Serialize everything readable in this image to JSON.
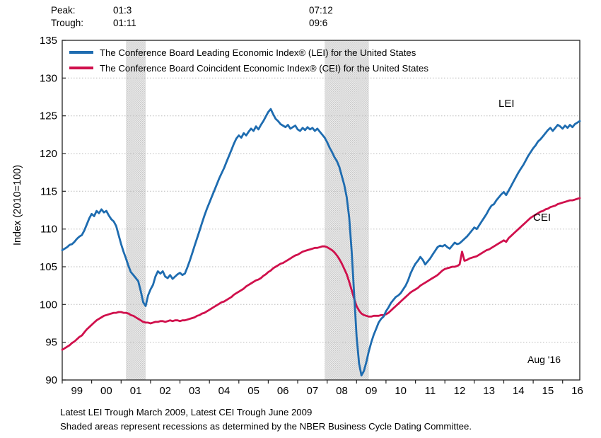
{
  "annotations": {
    "peak_label": "Peak:",
    "trough_label": "Trough:",
    "recession1_peak": "01:3",
    "recession1_trough": "01:11",
    "recession2_peak": "07:12",
    "recession2_trough": "09:6"
  },
  "labels": {
    "lei_curve": "LEI",
    "cei_curve": "CEI",
    "last_point": "Aug '16"
  },
  "footer": {
    "line1": "Latest LEI Trough March 2009, Latest CEI Trough June 2009",
    "line2": "Shaded areas represent recessions as determined by the NBER Business Cycle Dating Committee."
  },
  "chart_data": {
    "type": "line",
    "title": "",
    "xlabel": "",
    "ylabel": "Index (2010=100)",
    "ylim": [
      90,
      135
    ],
    "grid": "horizontal-dotted",
    "legend_position": "top-left-inside",
    "x_start": "1999-01",
    "x_end": "2016-08",
    "frequency": "monthly",
    "y_ticks": [
      {
        "value": 135,
        "label": "135"
      },
      {
        "value": 130,
        "label": "130"
      },
      {
        "value": 125,
        "label": "125"
      },
      {
        "value": 120,
        "label": "120"
      },
      {
        "value": 115,
        "label": "115"
      },
      {
        "value": 110,
        "label": "110"
      },
      {
        "value": 105,
        "label": "105"
      },
      {
        "value": 100,
        "label": "100"
      },
      {
        "value": 95,
        "label": "95"
      },
      {
        "value": 90,
        "label": "90"
      }
    ],
    "x_ticks": [
      {
        "month_index": 0,
        "label": "99"
      },
      {
        "month_index": 12,
        "label": "00"
      },
      {
        "month_index": 24,
        "label": "01"
      },
      {
        "month_index": 36,
        "label": "02"
      },
      {
        "month_index": 48,
        "label": "03"
      },
      {
        "month_index": 60,
        "label": "04"
      },
      {
        "month_index": 72,
        "label": "05"
      },
      {
        "month_index": 84,
        "label": "06"
      },
      {
        "month_index": 96,
        "label": "07"
      },
      {
        "month_index": 108,
        "label": "08"
      },
      {
        "month_index": 120,
        "label": "09"
      },
      {
        "month_index": 132,
        "label": "10"
      },
      {
        "month_index": 144,
        "label": "11"
      },
      {
        "month_index": 156,
        "label": "12"
      },
      {
        "month_index": 168,
        "label": "13"
      },
      {
        "month_index": 180,
        "label": "14"
      },
      {
        "month_index": 192,
        "label": "15"
      },
      {
        "month_index": 204,
        "label": "16"
      }
    ],
    "recession_bands": [
      {
        "from": "2001-03",
        "to": "2001-11",
        "from_index": 26,
        "to_index": 34
      },
      {
        "from": "2007-12",
        "to": "2009-06",
        "from_index": 107,
        "to_index": 125
      }
    ],
    "colors": {
      "lei": "#1e6cb0",
      "cei": "#d0104c",
      "band": "#dcdcdc",
      "grid": "#bbbbbb",
      "axis": "#222222"
    },
    "series": [
      {
        "name": "LEI",
        "label": "The Conference Board Leading Economic Index® (LEI) for the United States",
        "color_key": "lei",
        "values": [
          107.2,
          107.4,
          107.6,
          107.9,
          108.0,
          108.3,
          108.7,
          109.0,
          109.2,
          109.8,
          110.6,
          111.4,
          112.0,
          111.7,
          112.4,
          112.1,
          112.6,
          112.2,
          112.4,
          111.8,
          111.3,
          111.0,
          110.4,
          109.2,
          108.0,
          107.0,
          106.1,
          105.1,
          104.3,
          103.9,
          103.5,
          103.1,
          101.8,
          100.3,
          99.8,
          101.2,
          102.0,
          102.6,
          103.7,
          104.4,
          104.1,
          104.4,
          103.7,
          103.5,
          103.9,
          103.4,
          103.7,
          104.0,
          104.2,
          103.9,
          104.1,
          104.9,
          105.8,
          106.8,
          107.8,
          108.8,
          109.8,
          110.8,
          111.8,
          112.7,
          113.5,
          114.3,
          115.1,
          115.9,
          116.7,
          117.4,
          118.1,
          118.9,
          119.7,
          120.5,
          121.3,
          122.0,
          122.4,
          122.1,
          122.7,
          122.4,
          122.9,
          123.3,
          123.0,
          123.6,
          123.2,
          123.8,
          124.3,
          124.9,
          125.5,
          125.9,
          125.2,
          124.6,
          124.3,
          123.9,
          123.7,
          123.5,
          123.8,
          123.3,
          123.5,
          123.7,
          123.2,
          123.0,
          123.4,
          123.1,
          123.5,
          123.2,
          123.4,
          123.0,
          123.3,
          122.9,
          122.5,
          122.1,
          121.5,
          120.8,
          120.2,
          119.5,
          119.0,
          118.2,
          117.0,
          115.8,
          114.2,
          111.5,
          107.0,
          101.5,
          95.8,
          92.2,
          90.6,
          91.2,
          92.4,
          93.8,
          95.0,
          96.0,
          96.8,
          97.6,
          98.1,
          98.4,
          99.1,
          99.6,
          100.2,
          100.6,
          101.0,
          101.2,
          101.5,
          102.0,
          102.5,
          103.2,
          104.1,
          104.8,
          105.4,
          105.8,
          106.3,
          105.9,
          105.3,
          105.7,
          106.1,
          106.6,
          107.1,
          107.6,
          107.8,
          107.7,
          107.9,
          107.6,
          107.4,
          107.8,
          108.2,
          108.0,
          108.1,
          108.4,
          108.7,
          109.0,
          109.4,
          109.8,
          110.2,
          110.0,
          110.5,
          111.0,
          111.5,
          112.0,
          112.6,
          113.1,
          113.3,
          113.8,
          114.2,
          114.6,
          114.9,
          114.5,
          115.1,
          115.7,
          116.3,
          116.9,
          117.5,
          118.0,
          118.5,
          119.1,
          119.7,
          120.2,
          120.7,
          121.1,
          121.6,
          121.9,
          122.3,
          122.7,
          123.1,
          123.4,
          123.0,
          123.4,
          123.8,
          123.6,
          123.3,
          123.7,
          123.4,
          123.8,
          123.5,
          123.9,
          124.1,
          124.3
        ]
      },
      {
        "name": "CEI",
        "label": "The Conference Board Coincident Economic Index® (CEI) for the United States",
        "color_key": "cei",
        "values": [
          94.0,
          94.2,
          94.4,
          94.6,
          94.9,
          95.1,
          95.4,
          95.7,
          95.9,
          96.3,
          96.7,
          97.0,
          97.3,
          97.6,
          97.9,
          98.1,
          98.3,
          98.5,
          98.6,
          98.7,
          98.8,
          98.9,
          98.9,
          99.0,
          99.0,
          98.9,
          98.9,
          98.8,
          98.6,
          98.5,
          98.3,
          98.1,
          97.9,
          97.7,
          97.6,
          97.6,
          97.5,
          97.6,
          97.7,
          97.7,
          97.8,
          97.8,
          97.7,
          97.8,
          97.9,
          97.8,
          97.9,
          97.9,
          97.8,
          97.9,
          97.9,
          98.0,
          98.1,
          98.2,
          98.3,
          98.5,
          98.6,
          98.8,
          98.9,
          99.1,
          99.3,
          99.5,
          99.7,
          99.9,
          100.1,
          100.3,
          100.4,
          100.6,
          100.8,
          101.0,
          101.3,
          101.5,
          101.7,
          101.9,
          102.1,
          102.4,
          102.6,
          102.8,
          103.0,
          103.2,
          103.3,
          103.5,
          103.8,
          104.0,
          104.3,
          104.5,
          104.8,
          105.0,
          105.2,
          105.4,
          105.5,
          105.7,
          105.9,
          106.1,
          106.3,
          106.5,
          106.6,
          106.8,
          107.0,
          107.1,
          107.2,
          107.3,
          107.4,
          107.5,
          107.5,
          107.6,
          107.7,
          107.7,
          107.6,
          107.4,
          107.2,
          106.9,
          106.5,
          106.0,
          105.4,
          104.7,
          104.0,
          103.0,
          101.9,
          100.8,
          99.8,
          99.2,
          98.8,
          98.6,
          98.5,
          98.4,
          98.4,
          98.5,
          98.5,
          98.5,
          98.6,
          98.6,
          98.7,
          98.9,
          99.2,
          99.5,
          99.8,
          100.1,
          100.4,
          100.7,
          101.0,
          101.3,
          101.6,
          101.8,
          102.0,
          102.2,
          102.5,
          102.7,
          102.9,
          103.1,
          103.3,
          103.5,
          103.7,
          103.9,
          104.2,
          104.5,
          104.7,
          104.8,
          104.9,
          105.0,
          105.0,
          105.1,
          105.3,
          107.0,
          105.8,
          105.9,
          106.1,
          106.2,
          106.3,
          106.4,
          106.6,
          106.8,
          107.0,
          107.2,
          107.3,
          107.5,
          107.7,
          107.9,
          108.1,
          108.3,
          108.5,
          108.3,
          108.8,
          109.1,
          109.4,
          109.7,
          110.0,
          110.3,
          110.6,
          110.9,
          111.2,
          111.5,
          111.7,
          111.9,
          112.1,
          112.3,
          112.4,
          112.6,
          112.7,
          112.9,
          113.0,
          113.1,
          113.3,
          113.4,
          113.5,
          113.6,
          113.7,
          113.8,
          113.8,
          113.9,
          114.0,
          114.1
        ]
      }
    ]
  }
}
